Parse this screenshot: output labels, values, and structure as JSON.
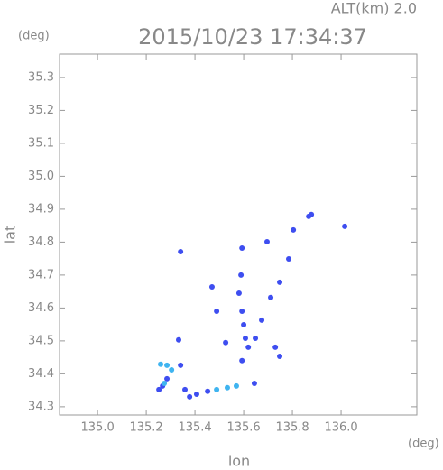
{
  "chart_data": {
    "type": "scatter",
    "title": "2015/10/23 17:34:37",
    "subtitle": "ALT(km) 2.0",
    "x_label": "lon",
    "y_label": "lat",
    "x_unit": "(deg)",
    "y_unit": "(deg)",
    "xlim": [
      134.844,
      136.311
    ],
    "ylim": [
      34.275,
      35.371
    ],
    "xticks": [
      {
        "value": 135.0,
        "label": "135.0"
      },
      135.2,
      135.4,
      135.6,
      135.8,
      {
        "value": 136.0,
        "label": "136.0"
      }
    ],
    "yticks": [
      34.3,
      34.4,
      34.5,
      34.6,
      34.7,
      34.8,
      34.9,
      {
        "value": 35.0,
        "label": "35.0"
      },
      35.1,
      35.2,
      35.3
    ],
    "series": [
      {
        "color": "#3e4ef0",
        "x": [
          135.878,
          135.867,
          136.015,
          135.804,
          135.696,
          135.593,
          135.341,
          135.785,
          135.589,
          135.47,
          135.581,
          135.593,
          135.6,
          135.607,
          135.619,
          135.648,
          135.674,
          135.711,
          135.748,
          135.73,
          135.748,
          135.593,
          135.644,
          135.489,
          135.526,
          135.333,
          135.267,
          135.252,
          135.285,
          135.359,
          135.407,
          135.452,
          135.341,
          135.378
        ],
        "values": [
          34.884,
          34.878,
          34.848,
          34.837,
          34.801,
          34.782,
          34.771,
          34.749,
          34.7,
          34.664,
          34.645,
          34.59,
          34.549,
          34.508,
          34.481,
          34.508,
          34.563,
          34.632,
          34.678,
          34.481,
          34.453,
          34.44,
          34.371,
          34.59,
          34.495,
          34.503,
          34.363,
          34.352,
          34.385,
          34.352,
          34.338,
          34.347,
          34.426,
          34.33
        ]
      },
      {
        "color": "#3fb4f0",
        "x": [
          135.285,
          135.304,
          135.274,
          135.489,
          135.533,
          135.57,
          135.259
        ],
        "values": [
          34.426,
          34.412,
          34.371,
          34.352,
          34.358,
          34.363,
          34.429
        ]
      }
    ]
  }
}
